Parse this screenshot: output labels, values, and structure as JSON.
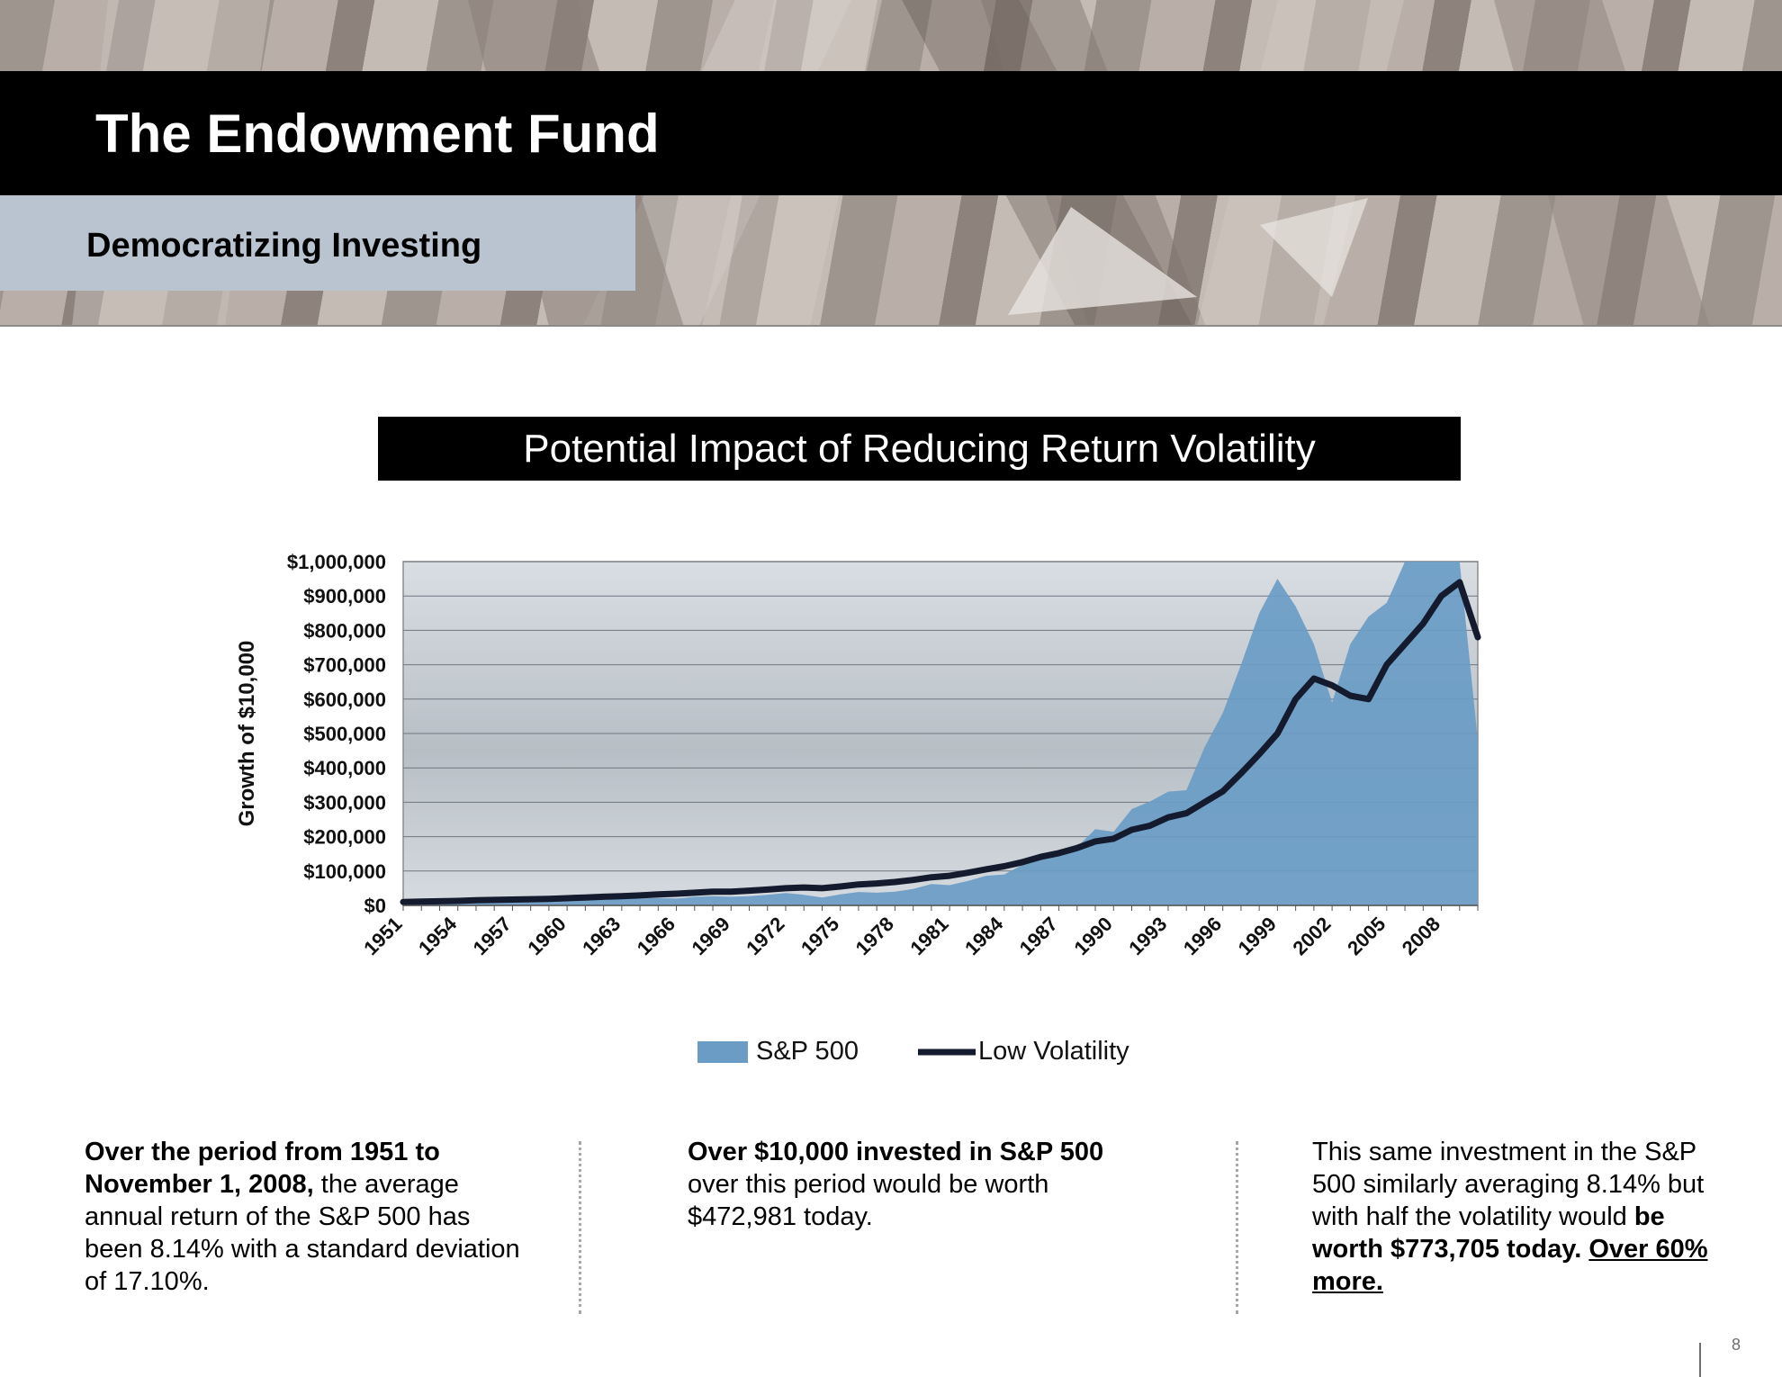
{
  "header": {
    "title": "The Endowment Fund",
    "subtitle": "Democratizing Investing"
  },
  "chart_title": "Potential Impact of Reducing Return Volatility",
  "chart_data": {
    "type": "area",
    "title": "Potential Impact of Reducing Return Volatility",
    "ylabel": "Growth of $10,000",
    "xlabel": "",
    "ylim": [
      0,
      1000000
    ],
    "y_ticks": [
      "$0",
      "$100,000",
      "$200,000",
      "$300,000",
      "$400,000",
      "$500,000",
      "$600,000",
      "$700,000",
      "$800,000",
      "$900,000",
      "$1,000,000"
    ],
    "x_ticks": [
      "1951",
      "1954",
      "1957",
      "1960",
      "1963",
      "1966",
      "1969",
      "1972",
      "1975",
      "1978",
      "1981",
      "1984",
      "1987",
      "1990",
      "1993",
      "1996",
      "1999",
      "2002",
      "2005",
      "2008"
    ],
    "x": [
      1951,
      1952,
      1953,
      1954,
      1955,
      1956,
      1957,
      1958,
      1959,
      1960,
      1961,
      1962,
      1963,
      1964,
      1965,
      1966,
      1967,
      1968,
      1969,
      1970,
      1971,
      1972,
      1973,
      1974,
      1975,
      1976,
      1977,
      1978,
      1979,
      1980,
      1981,
      1982,
      1983,
      1984,
      1985,
      1986,
      1987,
      1988,
      1989,
      1990,
      1991,
      1992,
      1993,
      1994,
      1995,
      1996,
      1997,
      1998,
      1999,
      2000,
      2001,
      2002,
      2003,
      2004,
      2005,
      2006,
      2007,
      2008,
      2009,
      2010
    ],
    "grid": true,
    "legend_position": "bottom",
    "series": [
      {
        "name": "S&P 500",
        "style": "area",
        "color": "#6a9cc6",
        "values": [
          10000,
          10000,
          10000,
          10000,
          12000,
          12000,
          11000,
          14000,
          14000,
          13000,
          17000,
          16000,
          19000,
          20000,
          22000,
          20000,
          25000,
          27000,
          25000,
          27000,
          31000,
          36000,
          31000,
          23000,
          32000,
          39000,
          37000,
          40000,
          48000,
          62000,
          59000,
          71000,
          86000,
          90000,
          118000,
          139000,
          146000,
          170000,
          222000,
          214000,
          280000,
          302000,
          331000,
          335000,
          460000,
          560000,
          700000,
          850000,
          950000,
          870000,
          760000,
          590000,
          760000,
          840000,
          880000,
          1010000,
          1060000,
          1080000,
          1000000,
          480000
        ]
      },
      {
        "name": "Low Volatility",
        "style": "line",
        "color": "#151b2e",
        "values": [
          10000,
          11000,
          12000,
          13000,
          15000,
          16000,
          17000,
          18000,
          19000,
          21000,
          23000,
          25000,
          27000,
          29000,
          32000,
          34000,
          37000,
          40000,
          40000,
          43000,
          46000,
          50000,
          52000,
          50000,
          55000,
          61000,
          64000,
          68000,
          74000,
          82000,
          86000,
          95000,
          105000,
          114000,
          126000,
          141000,
          152000,
          167000,
          186000,
          194000,
          220000,
          232000,
          256000,
          268000,
          300000,
          332000,
          384000,
          440000,
          500000,
          600000,
          660000,
          640000,
          610000,
          600000,
          700000,
          760000,
          820000,
          900000,
          940000,
          780000
        ]
      }
    ]
  },
  "legend": {
    "sp500": "S&P 500",
    "low_vol": "Low Volatility"
  },
  "columns": {
    "c1_bold": "Over the period from 1951 to November 1, 2008,",
    "c1_text": " the average annual return of the S&P 500 has been 8.14% with a standard deviation of 17.10%.",
    "c2_bold": "Over $10,000 invested in S&P 500",
    "c2_text": " over this period would be worth $472,981 today.",
    "c3_text": "This same investment in the S&P 500 similarly averaging 8.14% but with half the volatility would ",
    "c3_bold": "be worth $773,705 today.",
    "c3_underline": "Over 60% more."
  },
  "page_number": "8"
}
